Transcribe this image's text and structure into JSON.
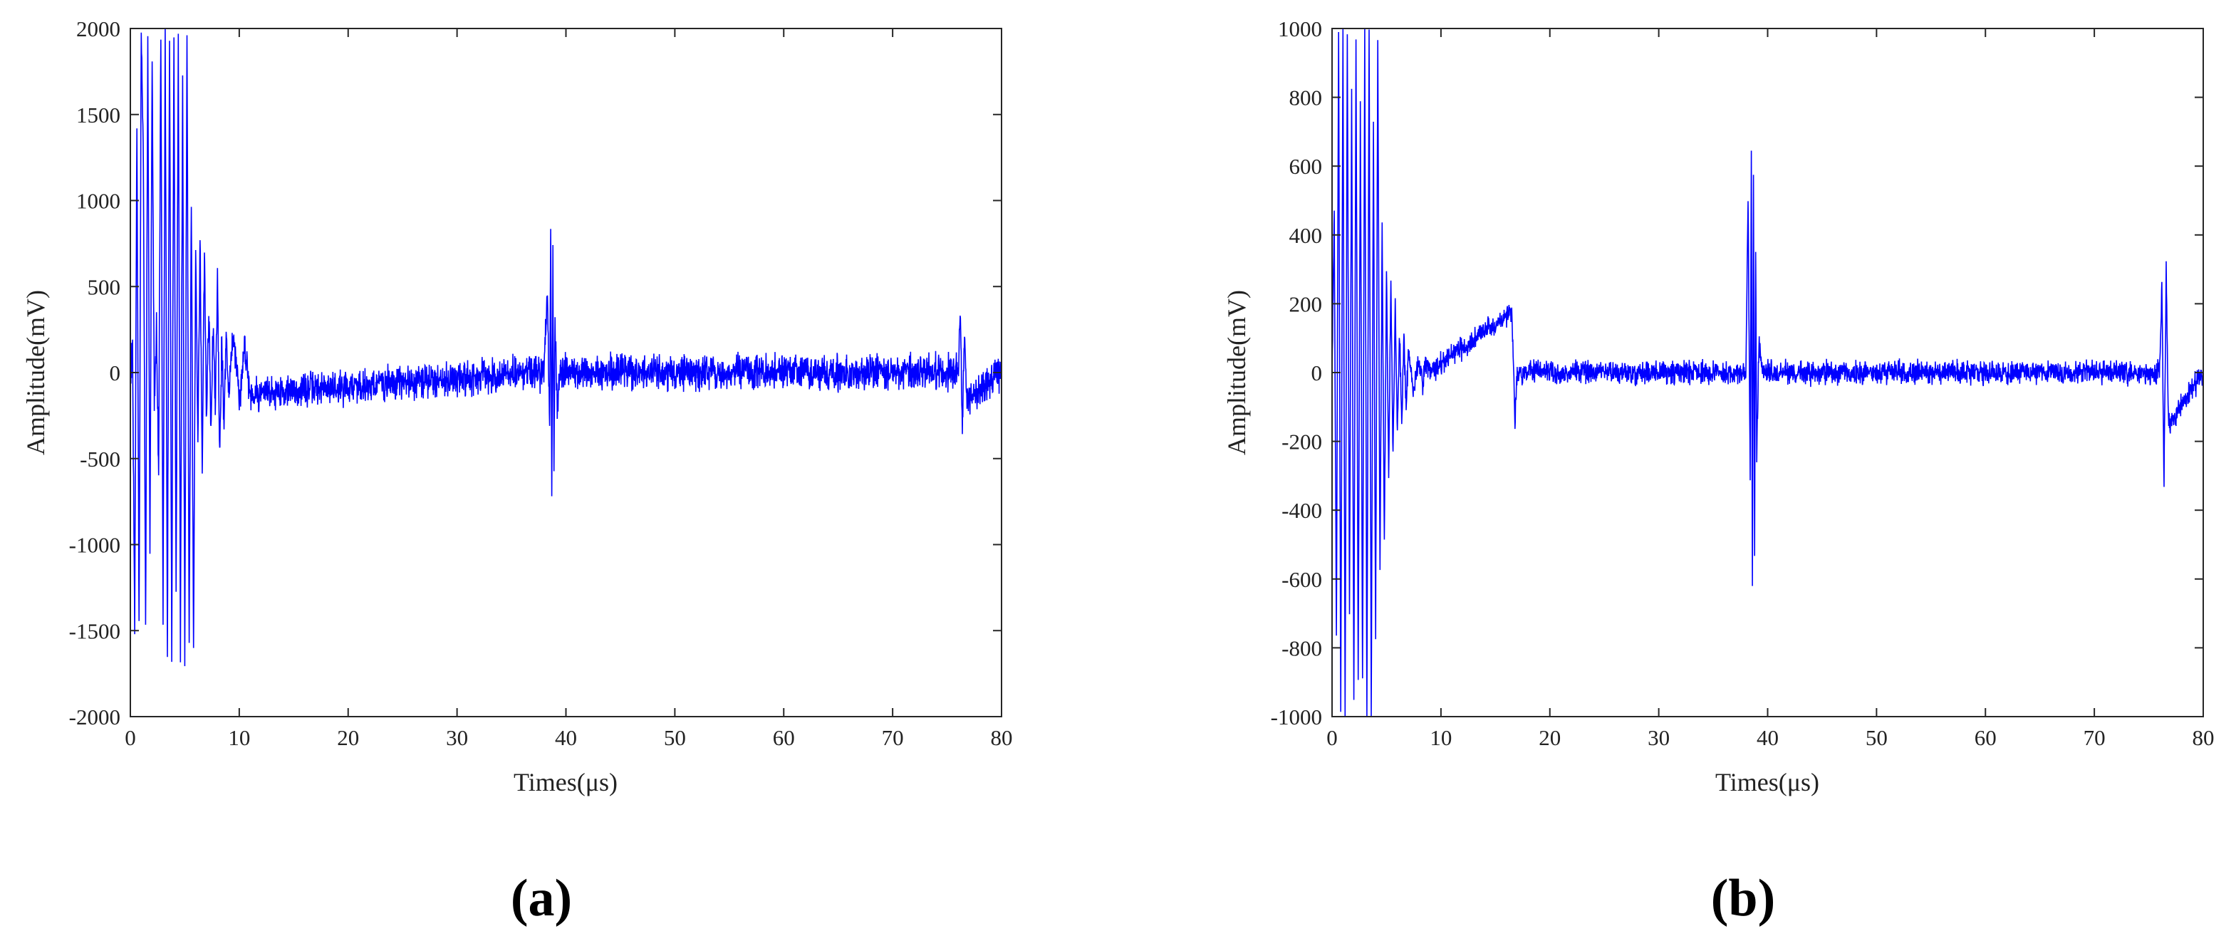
{
  "colors": {
    "signal": "#0000ff",
    "axis": "#262626",
    "background": "#ffffff"
  },
  "panels": [
    {
      "label": "(a)"
    },
    {
      "label": "(b)"
    }
  ],
  "chart_data": [
    {
      "type": "line",
      "panel_label": "(a)",
      "xlabel": "Times(μs)",
      "ylabel": "Amplitude(mV)",
      "xlim": [
        0,
        80
      ],
      "ylim": [
        -2000,
        2000
      ],
      "xticks": [
        0,
        10,
        20,
        30,
        40,
        50,
        60,
        70,
        80
      ],
      "yticks": [
        -2000,
        -1500,
        -1000,
        -500,
        0,
        500,
        1000,
        1500,
        2000
      ],
      "grid": false,
      "series": [
        {
          "noise_amplitude_mv": 90,
          "x": [
            0,
            0.2,
            0.4,
            0.6,
            0.8,
            1.0,
            1.2,
            1.4,
            1.6,
            1.8,
            2.0,
            2.2,
            2.4,
            2.6,
            2.8,
            3.0,
            3.2,
            3.4,
            3.6,
            3.8,
            4.0,
            4.2,
            4.4,
            4.6,
            4.8,
            5.0,
            5.2,
            5.4,
            5.6,
            5.8,
            6.0,
            6.2,
            6.4,
            6.6,
            6.8,
            7.0,
            7.2,
            7.4,
            7.6,
            7.8,
            8.0,
            8.2,
            8.4,
            8.6,
            8.8,
            9.0,
            9.5,
            10.0,
            10.5,
            11.0,
            38.0,
            38.3,
            38.5,
            38.6,
            38.7,
            38.8,
            38.9,
            39.0,
            39.2,
            39.5,
            76.0,
            76.2,
            76.4,
            76.6,
            76.8,
            80
          ],
          "y": [
            0,
            150,
            -1450,
            1450,
            -1500,
            2000,
            1200,
            -1480,
            1900,
            -1000,
            1800,
            -200,
            300,
            -600,
            2000,
            -1500,
            2000,
            -1600,
            2000,
            -1650,
            2000,
            -1300,
            2000,
            -1600,
            1700,
            -1670,
            2000,
            -1600,
            1000,
            -1670,
            700,
            -400,
            800,
            -600,
            750,
            -300,
            400,
            -350,
            300,
            -200,
            580,
            -470,
            200,
            -300,
            220,
            -100,
            230,
            -200,
            180,
            -120,
            0,
            480,
            -300,
            870,
            -710,
            650,
            -500,
            300,
            -200,
            0,
            0,
            370,
            -300,
            250,
            -150,
            0
          ]
        }
      ]
    },
    {
      "type": "line",
      "panel_label": "(b)",
      "xlabel": "Times(μs)",
      "ylabel": "Amplitude(mV)",
      "xlim": [
        0,
        80
      ],
      "ylim": [
        -1000,
        1000
      ],
      "xticks": [
        0,
        10,
        20,
        30,
        40,
        50,
        60,
        70,
        80
      ],
      "yticks": [
        -1000,
        -800,
        -600,
        -400,
        -200,
        0,
        200,
        400,
        600,
        800,
        1000
      ],
      "grid": false,
      "series": [
        {
          "noise_amplitude_mv": 30,
          "x": [
            0,
            0.2,
            0.4,
            0.6,
            0.8,
            1.0,
            1.2,
            1.4,
            1.6,
            1.8,
            2.0,
            2.2,
            2.4,
            2.6,
            2.8,
            3.0,
            3.2,
            3.4,
            3.6,
            3.8,
            4.0,
            4.2,
            4.4,
            4.6,
            4.8,
            5.0,
            5.2,
            5.4,
            5.6,
            5.8,
            6.0,
            6.2,
            6.4,
            6.6,
            6.8,
            7.0,
            7.5,
            8.0,
            8.3,
            8.6,
            9.0,
            16.5,
            16.8,
            17.0,
            38.0,
            38.2,
            38.4,
            38.5,
            38.6,
            38.7,
            38.8,
            38.9,
            39.0,
            39.2,
            39.5,
            76.0,
            76.2,
            76.4,
            76.6,
            76.8,
            80
          ],
          "y": [
            0,
            460,
            -780,
            1000,
            -1000,
            990,
            -1000,
            980,
            -700,
            800,
            -950,
            990,
            -880,
            770,
            -900,
            1000,
            -1000,
            990,
            -1000,
            700,
            -800,
            970,
            -600,
            400,
            -500,
            300,
            -300,
            280,
            -250,
            200,
            -170,
            120,
            -160,
            110,
            -100,
            60,
            -50,
            40,
            -30,
            20,
            0,
            180,
            -140,
            0,
            0,
            500,
            -300,
            650,
            -620,
            560,
            -540,
            350,
            -250,
            100,
            0,
            0,
            250,
            -310,
            290,
            -150,
            0
          ]
        }
      ]
    }
  ]
}
